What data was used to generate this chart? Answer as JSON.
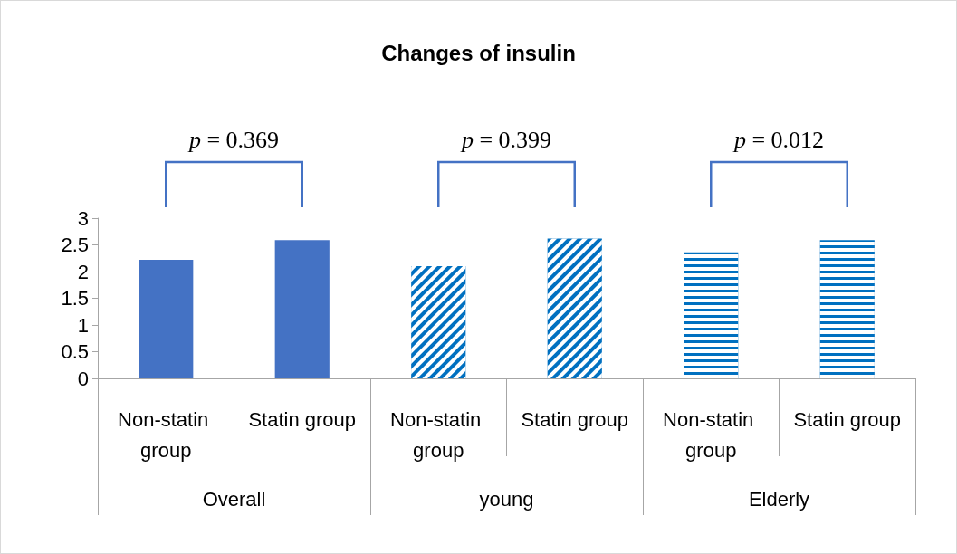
{
  "chart_data": {
    "type": "bar",
    "title": "Changes of insulin",
    "categories": [
      "Non-statin group",
      "Statin group",
      "Non-statin group",
      "Statin group",
      "Non-statin group",
      "Statin group"
    ],
    "values": [
      2.22,
      2.59,
      2.1,
      2.62,
      2.36,
      2.59
    ],
    "colors": [
      "#4472c4",
      "#4472c4",
      "#0070c0",
      "#0070c0",
      "#0070c0",
      "#0070c0"
    ],
    "ylim": [
      0,
      3
    ],
    "yticks": [
      0,
      0.5,
      1,
      1.5,
      2,
      2.5,
      3
    ],
    "grid": false,
    "annotations": [
      "p = 0.369",
      "p = 0.399",
      "p = 0.012",
      "Overall",
      "young",
      "Elderly"
    ]
  }
}
